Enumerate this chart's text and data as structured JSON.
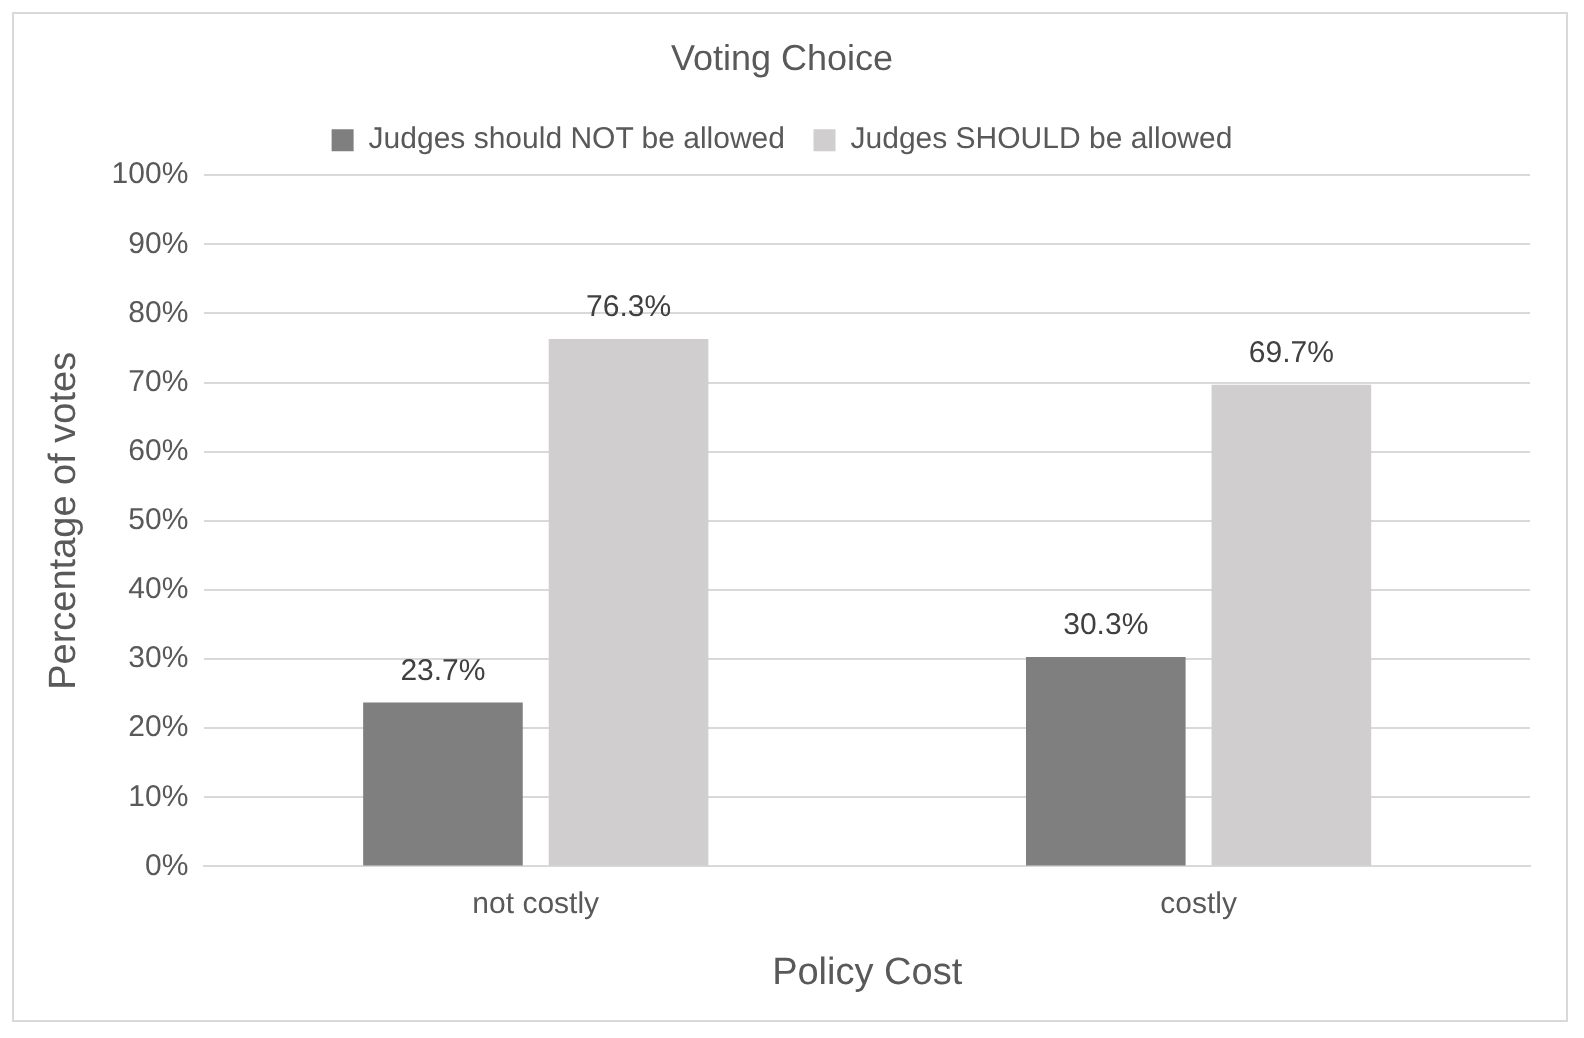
{
  "chart_data": {
    "type": "bar",
    "title": "Voting Choice",
    "xlabel": "Policy Cost",
    "ylabel": "Percentage of votes",
    "categories": [
      "not costly",
      "costly"
    ],
    "series": [
      {
        "name": "Judges should NOT be allowed",
        "color": "#7f7f7f",
        "values": [
          23.7,
          30.3
        ],
        "value_labels": [
          "23.7%",
          "30.3%"
        ]
      },
      {
        "name": "Judges SHOULD be allowed",
        "color": "#d0cece",
        "values": [
          76.3,
          69.7
        ],
        "value_labels": [
          "76.3%",
          "69.7%"
        ]
      }
    ],
    "ylim": [
      0,
      100
    ],
    "yticks": [
      {
        "value": 0,
        "label": "0%"
      },
      {
        "value": 10,
        "label": "10%"
      },
      {
        "value": 20,
        "label": "20%"
      },
      {
        "value": 30,
        "label": "30%"
      },
      {
        "value": 40,
        "label": "40%"
      },
      {
        "value": 50,
        "label": "50%"
      },
      {
        "value": 60,
        "label": "60%"
      },
      {
        "value": 70,
        "label": "70%"
      },
      {
        "value": 80,
        "label": "80%"
      },
      {
        "value": 90,
        "label": "90%"
      },
      {
        "value": 100,
        "label": "100%"
      }
    ],
    "grid": "y",
    "legend": "top"
  }
}
